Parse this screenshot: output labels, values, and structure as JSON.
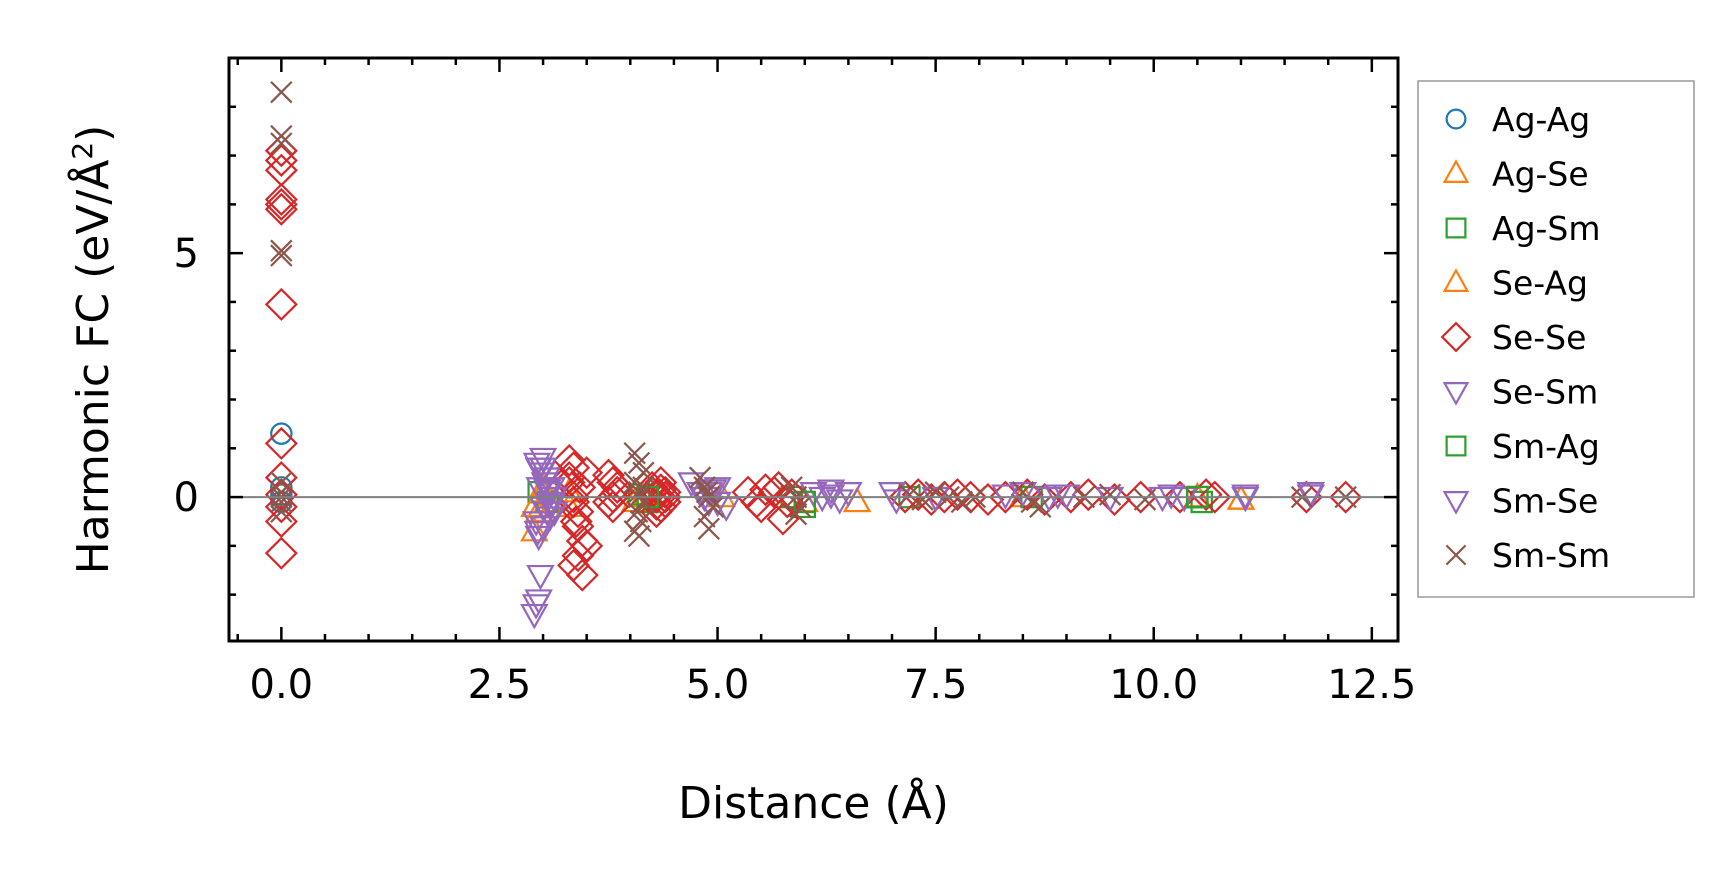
{
  "chart_data": {
    "type": "scatter",
    "xlabel": "Distance (Å)",
    "ylabel": "Harmonic FC (eV/Å",
    "ylabel_superscript": "2",
    "ylabel_suffix": ")",
    "xlim": [
      -0.6,
      12.8
    ],
    "ylim": [
      -2.95,
      9.0
    ],
    "x_ticks": [
      {
        "value": 0.0,
        "label": "0.0"
      },
      {
        "value": 2.5,
        "label": "2.5"
      },
      {
        "value": 5.0,
        "label": "5.0"
      },
      {
        "value": 7.5,
        "label": "7.5"
      },
      {
        "value": 10.0,
        "label": "10.0"
      },
      {
        "value": 12.5,
        "label": "12.5"
      }
    ],
    "y_ticks": [
      {
        "value": 0,
        "label": "0"
      },
      {
        "value": 5,
        "label": "5"
      }
    ],
    "reference_line_y": 0,
    "legend_position": "outside-right",
    "series": [
      {
        "name": "Ag-Ag",
        "marker": "circle",
        "color": "#1f77b4",
        "x": [
          0.0,
          0.0,
          0.0,
          0.0
        ],
        "y": [
          1.3,
          0.2,
          -0.1,
          0.05
        ]
      },
      {
        "name": "Ag-Se",
        "marker": "triangle-up",
        "color": "#ff7f0e",
        "x": [
          2.9,
          2.95,
          3.0,
          3.05,
          3.3,
          4.05,
          4.2,
          5.05,
          6.0,
          6.6,
          8.5,
          10.5,
          11.0
        ],
        "y": [
          -0.7,
          -0.3,
          0.2,
          -0.1,
          0.1,
          -0.1,
          0.05,
          0.0,
          -0.1,
          -0.1,
          0.0,
          0.0,
          -0.05
        ]
      },
      {
        "name": "Ag-Sm",
        "marker": "square",
        "color": "#2ca02c",
        "x": [
          2.95,
          3.05,
          4.1,
          4.2,
          5.85,
          6.0,
          7.2,
          8.6,
          10.5,
          10.55
        ],
        "y": [
          0.1,
          -0.1,
          0.05,
          -0.1,
          0.0,
          -0.2,
          0.0,
          0.0,
          0.0,
          -0.1
        ]
      },
      {
        "name": "Se-Ag",
        "marker": "triangle-up",
        "color": "#ff7f0e",
        "x": [
          2.9,
          3.0,
          3.3,
          4.15,
          6.6,
          11.0
        ],
        "y": [
          -0.2,
          0.1,
          -0.2,
          0.0,
          -0.1,
          -0.05
        ]
      },
      {
        "name": "Se-Se",
        "marker": "diamond",
        "color": "#d62728",
        "x": [
          0.0,
          0.0,
          0.0,
          0.0,
          0.0,
          0.0,
          0.0,
          0.0,
          0.0,
          0.0,
          0.0,
          0.0,
          0.0,
          3.3,
          3.35,
          3.3,
          3.35,
          3.4,
          3.4,
          3.45,
          3.4,
          3.35,
          3.45,
          3.5,
          3.3,
          3.35,
          3.42,
          3.5,
          3.38,
          3.75,
          3.8,
          3.85,
          3.75,
          3.8,
          3.85,
          3.8,
          4.25,
          4.3,
          4.35,
          4.4,
          4.3,
          4.35,
          4.4,
          4.25,
          4.3,
          4.35,
          4.4,
          4.3,
          5.35,
          5.45,
          5.55,
          5.5,
          5.65,
          5.75,
          5.85,
          5.8,
          5.7,
          7.15,
          7.3,
          7.45,
          7.6,
          7.75,
          7.9,
          8.1,
          8.3,
          8.55,
          8.75,
          9.05,
          9.25,
          9.55,
          9.85,
          10.3,
          10.6,
          10.7,
          11.75,
          12.2
        ],
        "y": [
          6.9,
          7.1,
          6.7,
          6.1,
          6.0,
          5.9,
          3.95,
          1.1,
          0.4,
          0.05,
          -0.2,
          -0.5,
          -1.15,
          0.75,
          0.6,
          0.3,
          0.0,
          -0.3,
          -0.6,
          -0.9,
          -1.2,
          -1.4,
          -1.6,
          -1.0,
          0.4,
          -0.1,
          0.2,
          0.5,
          -0.5,
          0.45,
          0.3,
          0.1,
          -0.1,
          -0.2,
          0.2,
          0.0,
          0.2,
          0.0,
          -0.2,
          0.1,
          -0.3,
          0.3,
          -0.1,
          0.1,
          -0.15,
          0.15,
          0.0,
          0.05,
          0.1,
          -0.1,
          0.15,
          -0.2,
          0.1,
          -0.45,
          0.05,
          -0.1,
          0.2,
          0.0,
          0.05,
          -0.05,
          0.0,
          0.05,
          0.0,
          -0.05,
          0.0,
          0.05,
          -0.05,
          0.0,
          0.05,
          -0.05,
          0.0,
          0.0,
          0.05,
          0.0,
          0.0,
          0.0
        ]
      },
      {
        "name": "Se-Sm",
        "marker": "triangle-down",
        "color": "#9467bd",
        "x": [
          2.9,
          2.92,
          2.95,
          2.97,
          3.0,
          2.93,
          2.98,
          3.02,
          3.06,
          3.1,
          3.13,
          2.92,
          2.94,
          2.96,
          3.0,
          3.04,
          3.08,
          3.12,
          2.95,
          3.0,
          3.05,
          3.1,
          4.7,
          4.8,
          4.9,
          5.0,
          5.1,
          4.85,
          4.95,
          6.1,
          6.2,
          6.3,
          6.4,
          6.5,
          7.0,
          7.05,
          7.5,
          8.3,
          8.5,
          8.8,
          9.0,
          9.5,
          10.2,
          10.35,
          11.05,
          11.8
        ],
        "y": [
          -2.4,
          -2.2,
          -2.1,
          -1.6,
          0.8,
          0.7,
          0.5,
          0.3,
          0.1,
          -0.1,
          -0.3,
          -0.5,
          -0.7,
          0.2,
          -0.2,
          0.4,
          -0.4,
          0.0,
          0.6,
          -0.6,
          0.15,
          -0.15,
          0.3,
          0.1,
          -0.1,
          0.2,
          -0.2,
          0.0,
          0.15,
          0.1,
          0.0,
          0.15,
          -0.05,
          0.1,
          0.1,
          -0.05,
          0.0,
          0.05,
          0.1,
          0.0,
          0.05,
          0.0,
          0.05,
          0.0,
          0.05,
          0.1
        ]
      },
      {
        "name": "Sm-Ag",
        "marker": "square",
        "color": "#2ca02c",
        "x": [
          4.2,
          6.0,
          10.5
        ],
        "y": [
          0.0,
          -0.1,
          0.0
        ]
      },
      {
        "name": "Sm-Se",
        "marker": "triangle-down",
        "color": "#9467bd",
        "x": [
          2.95,
          3.0,
          3.05,
          3.1,
          4.9,
          5.0,
          6.3,
          7.5,
          8.9,
          10.1,
          11.05,
          11.8
        ],
        "y": [
          -0.8,
          0.6,
          -0.3,
          0.2,
          0.1,
          -0.1,
          0.05,
          0.0,
          0.05,
          0.0,
          0.0,
          0.05
        ]
      },
      {
        "name": "Sm-Sm",
        "marker": "x",
        "color": "#8c564b",
        "x": [
          0.0,
          0.0,
          0.0,
          0.0,
          0.0,
          0.0,
          0.0,
          0.0,
          0.0,
          0.0,
          4.05,
          4.1,
          4.15,
          4.05,
          4.1,
          4.15,
          4.08,
          4.12,
          4.05,
          4.1,
          4.15,
          4.1,
          4.8,
          4.85,
          4.9,
          4.95,
          4.85,
          4.9,
          4.88,
          5.85,
          5.9,
          5.95,
          5.9,
          7.2,
          7.35,
          7.5,
          7.65,
          7.8,
          7.95,
          8.5,
          8.6,
          8.7,
          9.2,
          9.5,
          9.9,
          11.7,
          12.2
        ],
        "y": [
          8.3,
          7.4,
          7.25,
          5.05,
          4.95,
          0.3,
          0.1,
          -0.1,
          -0.3,
          0.0,
          0.9,
          0.7,
          0.5,
          0.3,
          0.1,
          -0.1,
          -0.3,
          -0.5,
          -0.7,
          -0.8,
          0.2,
          0.0,
          0.4,
          0.2,
          0.0,
          -0.2,
          -0.4,
          -0.65,
          0.1,
          0.2,
          0.0,
          -0.2,
          -0.35,
          0.05,
          -0.05,
          0.1,
          0.0,
          -0.1,
          0.0,
          0.1,
          -0.1,
          -0.2,
          0.0,
          0.05,
          -0.05,
          0.0,
          0.0
        ]
      }
    ]
  }
}
